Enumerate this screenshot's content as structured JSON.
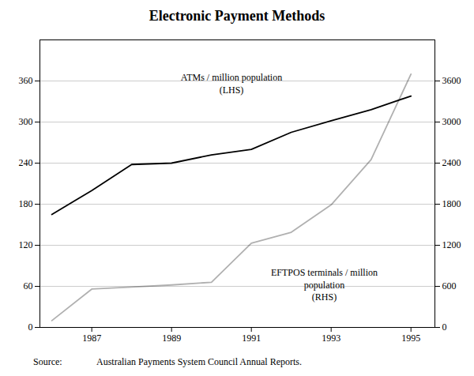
{
  "chart_data": {
    "type": "line",
    "title": "Electronic Payment Methods",
    "x": [
      1986,
      1987,
      1988,
      1989,
      1990,
      1991,
      1992,
      1993,
      1994,
      1995
    ],
    "xlim": [
      1985.7,
      1995.6
    ],
    "xticks": [
      1987,
      1989,
      1991,
      1993,
      1995
    ],
    "ylim": [
      0,
      420
    ],
    "yticks": [
      0,
      60,
      120,
      180,
      240,
      300,
      360
    ],
    "y2lim": [
      0,
      4200
    ],
    "y2ticks": [
      0,
      600,
      1200,
      1800,
      2400,
      3000,
      3600
    ],
    "grid": true,
    "series": [
      {
        "color": "#000000",
        "values": [
          165,
          200,
          238,
          240,
          252,
          260,
          285,
          302,
          318,
          338
        ]
      },
      {
        "color": "#b0b0b0",
        "axis": "y2",
        "values": [
          100,
          560,
          590,
          620,
          660,
          1230,
          1390,
          1790,
          2450,
          3700
        ]
      }
    ],
    "annotations": [
      [
        "ATMs / million population",
        "(LHS)"
      ],
      [
        "EFTPOS terminals / million",
        "population",
        "(RHS)"
      ]
    ],
    "source": {
      "label": "Source:",
      "text": "Australian Payments System Council Annual Reports."
    }
  }
}
